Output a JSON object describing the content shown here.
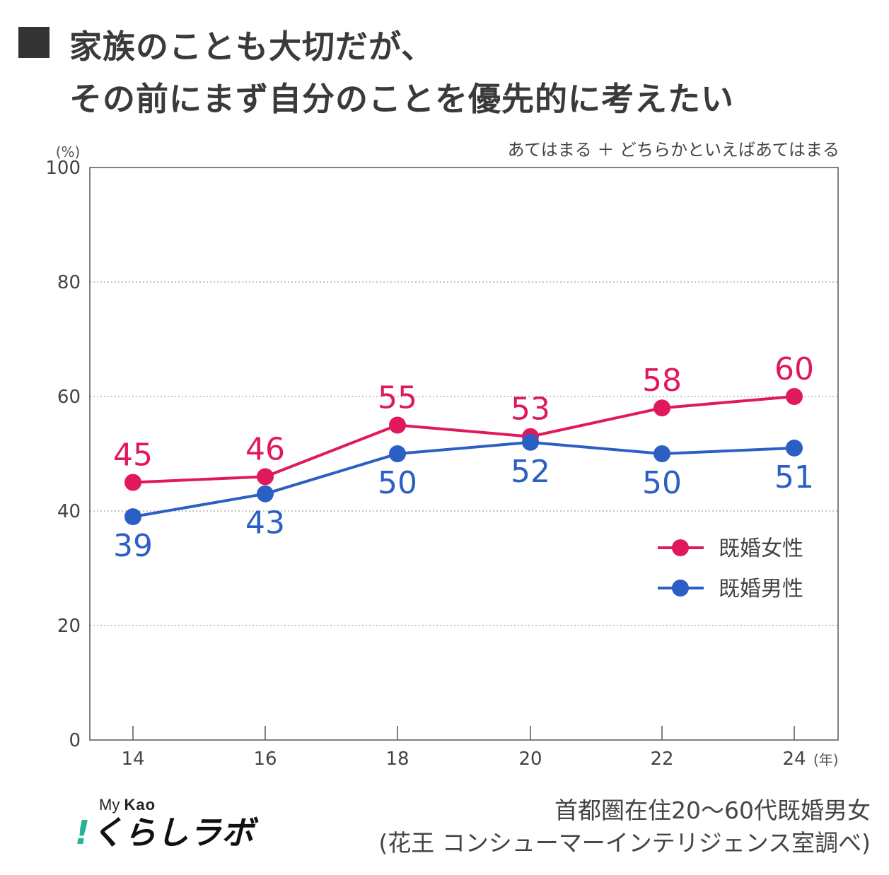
{
  "title": {
    "line1": "家族のことも大切だが、",
    "line2": "その前にまず自分のことを優先的に考えたい"
  },
  "subtitle": "あてはまる ＋ どちらかといえばあてはまる",
  "footer": {
    "line1": "首都圏在住20～60代既婚男女",
    "line2": "(花王 コンシューマーインテリジェンス室調べ)"
  },
  "logo": {
    "top_prefix": "My",
    "top_brand": "Kao",
    "mark": "!",
    "text": "くらしラボ"
  },
  "chart_data": {
    "type": "line",
    "title": "家族のことも大切だが、その前にまず自分のことを優先的に考えたい",
    "ylabel": "(%)",
    "xlabel": "(年)",
    "x": [
      "14",
      "16",
      "18",
      "20",
      "22",
      "24"
    ],
    "ylim": [
      0,
      100
    ],
    "yticks": [
      0,
      20,
      40,
      60,
      80,
      100
    ],
    "grid": true,
    "legend_position": "bottom-right",
    "series": [
      {
        "name": "既婚女性",
        "color": "#e0195c",
        "values": [
          45,
          46,
          55,
          53,
          58,
          60
        ]
      },
      {
        "name": "既婚男性",
        "color": "#2b5fc4",
        "values": [
          39,
          43,
          50,
          52,
          50,
          51
        ]
      }
    ]
  }
}
